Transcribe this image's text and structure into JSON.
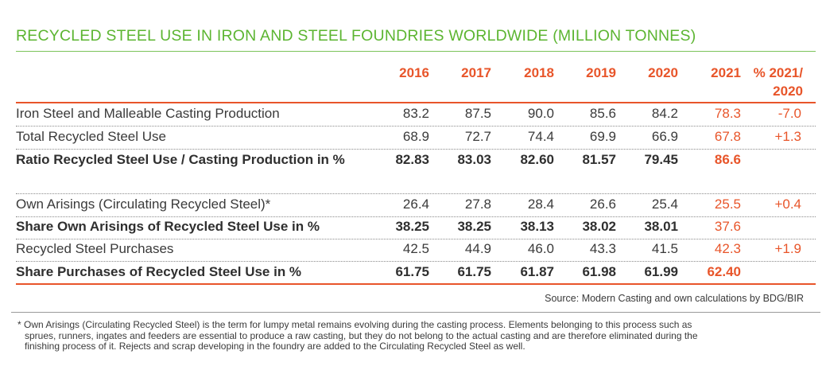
{
  "title": "RECYCLED STEEL USE IN IRON AND STEEL FOUNDRIES WORLDWIDE (MILLION TONNES)",
  "columns": [
    "2016",
    "2017",
    "2018",
    "2019",
    "2020",
    "2021"
  ],
  "change_header": [
    "% 2021/",
    "2020"
  ],
  "rows": [
    {
      "label": "Iron Steel and Malleable Casting Production",
      "values": [
        "83.2",
        "87.5",
        "90.0",
        "85.6",
        "84.2",
        "78.3"
      ],
      "change": "-7.0"
    },
    {
      "label": "Total Recycled Steel Use",
      "values": [
        "68.9",
        "72.7",
        "74.4",
        "69.9",
        "66.9",
        "67.8"
      ],
      "change": "+1.3"
    },
    {
      "label": "Ratio Recycled Steel Use / Casting Production in %",
      "values": [
        "82.83",
        "83.03",
        "82.60",
        "81.57",
        "79.45",
        "86.6"
      ],
      "change": ""
    },
    {
      "label": "Own Arisings (Circulating Recycled Steel)*",
      "values": [
        "26.4",
        "27.8",
        "28.4",
        "26.6",
        "25.4",
        "25.5"
      ],
      "change": "+0.4"
    },
    {
      "label": "Share Own Arisings of Recycled Steel Use in %",
      "values": [
        "38.25",
        "38.25",
        "38.13",
        "38.02",
        "38.01",
        "37.6"
      ],
      "change": ""
    },
    {
      "label": "Recycled Steel Purchases",
      "values": [
        "42.5",
        "44.9",
        "46.0",
        "43.3",
        "41.5",
        "42.3"
      ],
      "change": "+1.9"
    },
    {
      "label": "Share Purchases of Recycled Steel Use in %",
      "values": [
        "61.75",
        "61.75",
        "61.87",
        "61.98",
        "61.99",
        "62.40"
      ],
      "change": ""
    }
  ],
  "source": "Source: Modern Casting and own calculations by BDG/BIR",
  "footnote": [
    "* Own Arisings (Circulating Recycled Steel) is the term for lumpy metal remains evolving during the casting process. Elements belonging to this process such as",
    "sprues, runners, ingates and feeders are essential to produce a raw casting, but they do not belong to the actual casting and are therefore eliminated during the",
    "finishing process of it. Rejects and scrap developing in the foundry are added to the Circulating Recycled Steel as well."
  ],
  "colors": {
    "title": "#5cb531",
    "accent": "#e8552a",
    "text": "#3a3a3a"
  }
}
